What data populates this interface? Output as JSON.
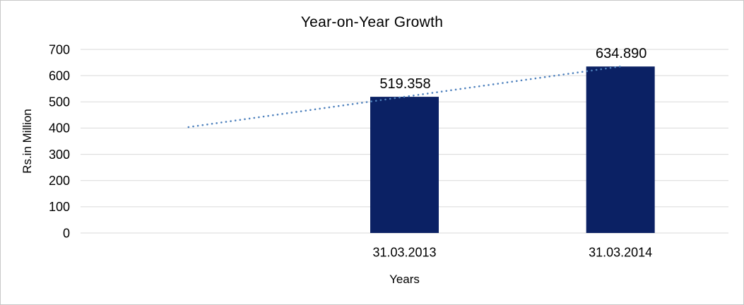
{
  "chart_data": {
    "type": "bar",
    "title": "Year-on-Year Growth",
    "xlabel": "Years",
    "ylabel": "Rs.in Million",
    "categories": [
      "31.03.2013",
      "31.03.2014"
    ],
    "values": [
      519.358,
      634.89
    ],
    "data_labels": [
      "519.358",
      "634.890"
    ],
    "ylim": [
      0,
      700
    ],
    "ytick_interval": 100,
    "ytick_labels": [
      "0",
      "100",
      "200",
      "300",
      "400",
      "500",
      "600",
      "700"
    ],
    "grid": "horizontal",
    "legend": "none",
    "trendline": {
      "style": "dotted",
      "shape": "linear",
      "start_value": 403.8,
      "end_value": 634.89,
      "note": "starts one category-width left of first bar, ends at top center of second bar"
    },
    "colors": {
      "bar": "#0b2164",
      "trendline": "#4e81bd",
      "gridline": "#d9d9d9",
      "text": "#000000",
      "border": "#c8c8c8",
      "background": "#ffffff"
    }
  }
}
